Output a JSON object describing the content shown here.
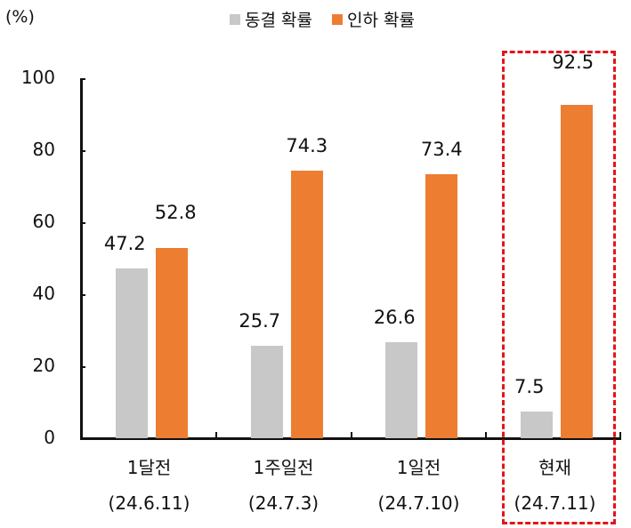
{
  "chart_data": {
    "type": "bar",
    "title": "",
    "unit_label": "(%)",
    "xlabel": "",
    "ylabel": "(%)",
    "ylim": [
      0,
      100
    ],
    "yticks": [
      0,
      20,
      40,
      60,
      80,
      100
    ],
    "grid": false,
    "legend_position": "top",
    "categories": [
      "1달전 (24.6.11)",
      "1주일전 (24.7.3)",
      "1일전 (24.7.10)",
      "현재 (24.7.11)"
    ],
    "category_lines": [
      [
        "1달전",
        "(24.6.11)"
      ],
      [
        "1주일전",
        "(24.7.3)"
      ],
      [
        "1일전",
        "(24.7.10)"
      ],
      [
        "현재",
        "(24.7.11)"
      ]
    ],
    "series": [
      {
        "name": "동결 확률",
        "color": "#c8c8c8",
        "values": [
          47.2,
          25.7,
          26.6,
          7.5
        ]
      },
      {
        "name": "인하 확률",
        "color": "#ed7d31",
        "values": [
          52.8,
          74.3,
          73.4,
          92.5
        ]
      }
    ],
    "annotations": [
      {
        "type": "dashed-box",
        "target_category": "현재 (24.7.11)",
        "color": "#e3151b"
      }
    ]
  },
  "labels": {
    "unit": "(%)",
    "legend": [
      "동결 확률",
      "인하 확률"
    ],
    "yticks": [
      "100",
      "80",
      "60",
      "40",
      "20",
      "0"
    ],
    "values_freeze": [
      "47.2",
      "25.7",
      "26.6",
      "7.5"
    ],
    "values_cut": [
      "52.8",
      "74.3",
      "73.4",
      "92.5"
    ],
    "cat_top": [
      "1달전",
      "1주일전",
      "1일전",
      "현재"
    ],
    "cat_bottom": [
      "(24.6.11)",
      "(24.7.3)",
      "(24.7.10)",
      "(24.7.11)"
    ]
  }
}
